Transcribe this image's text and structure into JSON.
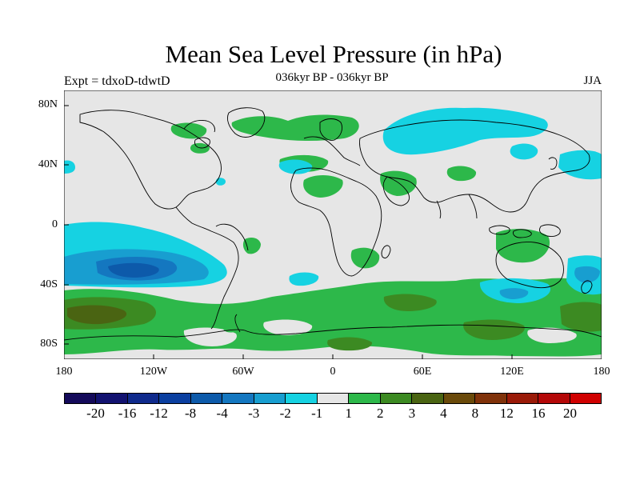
{
  "title": "Mean Sea Level Pressure (in hPa)",
  "subtitle_left": "Expt = tdxoD-tdwtD",
  "subtitle_center": "036kyr BP - 036kyr BP",
  "subtitle_right": "JJA",
  "y_ticks": [
    "80N",
    "40N",
    "0",
    "40S",
    "80S"
  ],
  "x_ticks": [
    "180",
    "120W",
    "60W",
    "0",
    "60E",
    "120E",
    "180"
  ],
  "colorbar": {
    "colors": [
      "#140a5a",
      "#121270",
      "#0f2a8c",
      "#0b3fa0",
      "#0d5aaa",
      "#1477c0",
      "#189ed0",
      "#16d2e2",
      "#e6e6e6",
      "#2db84a",
      "#3c8a22",
      "#4a6412",
      "#6a4a0a",
      "#80320a",
      "#9a1a08",
      "#b40808",
      "#d00000"
    ],
    "labels": [
      "-20",
      "-16",
      "-12",
      "-8",
      "-4",
      "-3",
      "-2",
      "-1",
      "1",
      "2",
      "3",
      "4",
      "8",
      "12",
      "16",
      "20"
    ]
  }
}
